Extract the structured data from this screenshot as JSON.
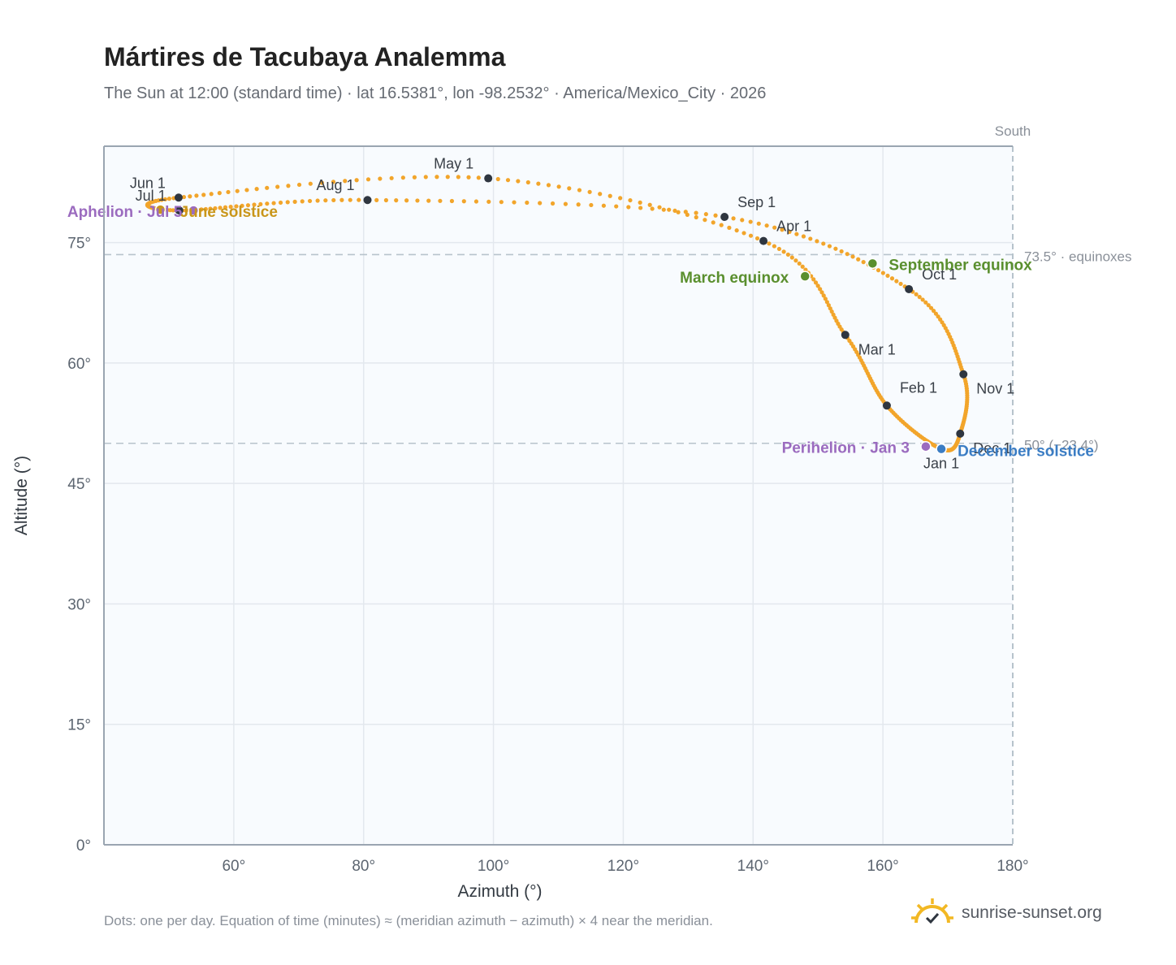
{
  "header": {
    "title": "Mártires de Tacubaya Analemma",
    "subtitle": "The Sun at 12:00 (standard time) · lat 16.5381°, lon -98.2532° · America/Mexico_City · 2026"
  },
  "footer": {
    "note": "Dots: one per day. Equation of time (minutes) ≈ (meridian azimuth − azimuth) × 4 near the meridian.",
    "brand": "sunrise-sunset.org"
  },
  "colors": {
    "curve": "#f2a52b",
    "month_marker": "#2f3640",
    "equinox": "#5a8f2e",
    "solstice_june": "#c9961a",
    "solstice_december": "#3b7dc4",
    "apsis": "#9b6bbf",
    "grid": "#e3e8ee",
    "plot_bg": "#f8fbfe",
    "axis": "#9aa5b1",
    "reference_line": "#b7c3cc"
  },
  "chart_data": {
    "type": "scatter",
    "title": "Mártires de Tacubaya Analemma",
    "xlabel": "Azimuth (°)",
    "ylabel": "Altitude (°)",
    "xlim": [
      40,
      180
    ],
    "ylim": [
      0,
      87
    ],
    "grid": true,
    "x_ticks": [
      60,
      80,
      100,
      120,
      140,
      160,
      180
    ],
    "x_tick_labels": [
      "60°",
      "80°",
      "100°",
      "120°",
      "140°",
      "160°",
      "180°"
    ],
    "y_ticks": [
      0,
      15,
      30,
      45,
      60,
      75
    ],
    "y_tick_labels": [
      "0°",
      "15°",
      "30°",
      "45°",
      "60°",
      "75°"
    ],
    "south_label": "South",
    "south_azimuth": 180,
    "reference_lines": [
      {
        "altitude": 73.5,
        "label": "73.5° · equinoxes"
      },
      {
        "altitude": 50.0,
        "label": "50° (−23.4°)"
      }
    ],
    "month_markers": [
      {
        "label": "Jan 1",
        "azimuth": 169.0,
        "altitude": 49.3
      },
      {
        "label": "Feb 1",
        "azimuth": 160.6,
        "altitude": 54.7
      },
      {
        "label": "Mar 1",
        "azimuth": 154.2,
        "altitude": 63.5
      },
      {
        "label": "Apr 1",
        "azimuth": 141.6,
        "altitude": 75.2
      },
      {
        "label": "May 1",
        "azimuth": 99.2,
        "altitude": 83.0
      },
      {
        "label": "Jun 1",
        "azimuth": 51.5,
        "altitude": 80.6
      },
      {
        "label": "Jul 1",
        "azimuth": 51.6,
        "altitude": 79.0
      },
      {
        "label": "Aug 1",
        "azimuth": 80.6,
        "altitude": 80.3
      },
      {
        "label": "Sep 1",
        "azimuth": 135.6,
        "altitude": 78.2
      },
      {
        "label": "Oct 1",
        "azimuth": 164.0,
        "altitude": 69.2
      },
      {
        "label": "Nov 1",
        "azimuth": 172.4,
        "altitude": 58.6
      },
      {
        "label": "Dec 1",
        "azimuth": 171.9,
        "altitude": 51.2
      }
    ],
    "events": [
      {
        "label": "March equinox",
        "azimuth": 148.0,
        "altitude": 70.8,
        "kind": "equinox"
      },
      {
        "label": "September equinox",
        "azimuth": 158.4,
        "altitude": 72.4,
        "kind": "equinox"
      },
      {
        "label": "June solstice",
        "azimuth": 48.7,
        "altitude": 79.1,
        "kind": "solstice_june"
      },
      {
        "label": "December solstice",
        "azimuth": 169.0,
        "altitude": 49.3,
        "kind": "solstice_december"
      },
      {
        "label": "Perihelion · Jan 3",
        "azimuth": 166.6,
        "altitude": 49.6,
        "kind": "apsis"
      },
      {
        "label": "Aphelion · Jul 5",
        "azimuth": 53.8,
        "altitude": 79.0,
        "kind": "apsis"
      }
    ]
  }
}
